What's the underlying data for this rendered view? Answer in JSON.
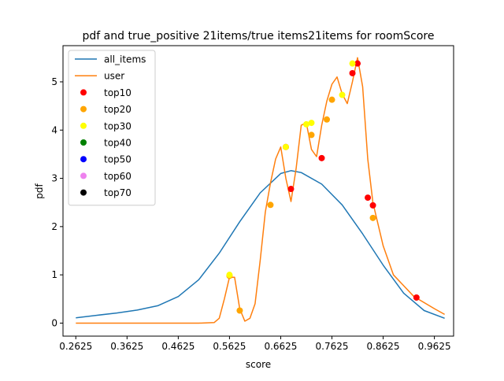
{
  "chart_data": {
    "type": "line",
    "title": "pdf and true_positive 21items/true items21items for roomScore",
    "xlabel": "score",
    "ylabel": "pdf",
    "xlim": [
      0.2375,
      1.0
    ],
    "ylim": [
      -0.27,
      5.75
    ],
    "xticks": [
      0.2625,
      0.3625,
      0.4625,
      0.5625,
      0.6625,
      0.7625,
      0.8625,
      0.9625
    ],
    "xtick_labels": [
      "0.2625",
      "0.3625",
      "0.4625",
      "0.5625",
      "0.6625",
      "0.7625",
      "0.8625",
      "0.9625"
    ],
    "yticks": [
      0,
      1,
      2,
      3,
      4,
      5
    ],
    "ytick_labels": [
      "0",
      "1",
      "2",
      "3",
      "4",
      "5"
    ],
    "grid": false,
    "legend": "top-left",
    "series": [
      {
        "name": "all_items",
        "kind": "line",
        "color": "#1f77b4",
        "x": [
          0.2625,
          0.3025,
          0.3425,
          0.3825,
          0.4225,
          0.4625,
          0.5025,
          0.5425,
          0.5825,
          0.6225,
          0.6625,
          0.6825,
          0.7025,
          0.7425,
          0.7825,
          0.8225,
          0.8625,
          0.9025,
          0.9425,
          0.9825
        ],
        "y": [
          0.11,
          0.16,
          0.21,
          0.27,
          0.36,
          0.55,
          0.9,
          1.45,
          2.1,
          2.7,
          3.1,
          3.16,
          3.12,
          2.88,
          2.45,
          1.85,
          1.2,
          0.62,
          0.26,
          0.1
        ]
      },
      {
        "name": "user",
        "kind": "line",
        "color": "#ff7f0e",
        "x": [
          0.2625,
          0.5025,
          0.5325,
          0.5425,
          0.5525,
          0.5625,
          0.5725,
          0.5825,
          0.5925,
          0.6025,
          0.6125,
          0.6225,
          0.6325,
          0.6425,
          0.6525,
          0.6625,
          0.6725,
          0.6825,
          0.6925,
          0.7025,
          0.7125,
          0.7225,
          0.7325,
          0.7425,
          0.7525,
          0.7625,
          0.7725,
          0.7825,
          0.7925,
          0.8025,
          0.8125,
          0.8225,
          0.8325,
          0.8425,
          0.8625,
          0.8825,
          0.9225,
          0.9625,
          0.9825
        ],
        "y": [
          0.0,
          0.0,
          0.01,
          0.1,
          0.5,
          0.95,
          0.95,
          0.3,
          0.04,
          0.1,
          0.4,
          1.3,
          2.3,
          2.9,
          3.4,
          3.65,
          3.0,
          2.52,
          3.2,
          4.1,
          4.15,
          3.6,
          3.45,
          4.1,
          4.6,
          4.95,
          5.1,
          4.75,
          4.55,
          5.0,
          5.5,
          4.9,
          3.4,
          2.5,
          1.6,
          1.0,
          0.55,
          0.3,
          0.18
        ]
      }
    ],
    "points": [
      {
        "name": "top10",
        "color": "#ff0000",
        "x": [
          0.6725,
          0.6825,
          0.7425,
          0.8025,
          0.8125,
          0.8325,
          0.8425,
          0.9275
        ],
        "y": [
          3.65,
          2.78,
          3.42,
          5.18,
          5.38,
          2.6,
          2.44,
          0.53
        ]
      },
      {
        "name": "top20",
        "color": "#ffa500",
        "x": [
          0.5625,
          0.5825,
          0.6425,
          0.7225,
          0.7525,
          0.7625,
          0.8425
        ],
        "y": [
          0.98,
          0.26,
          2.45,
          3.9,
          4.22,
          4.63,
          2.18
        ]
      },
      {
        "name": "top30",
        "color": "#ffff00",
        "x": [
          0.5625,
          0.6725,
          0.7125,
          0.7225,
          0.7825,
          0.8025
        ],
        "y": [
          1.0,
          3.65,
          4.12,
          4.15,
          4.73,
          5.38
        ]
      },
      {
        "name": "top40",
        "color": "#008000",
        "x": [],
        "y": []
      },
      {
        "name": "top50",
        "color": "#0000ff",
        "x": [],
        "y": []
      },
      {
        "name": "top60",
        "color": "#ee82ee",
        "x": [],
        "y": []
      },
      {
        "name": "top70",
        "color": "#000000",
        "x": [],
        "y": []
      }
    ]
  }
}
